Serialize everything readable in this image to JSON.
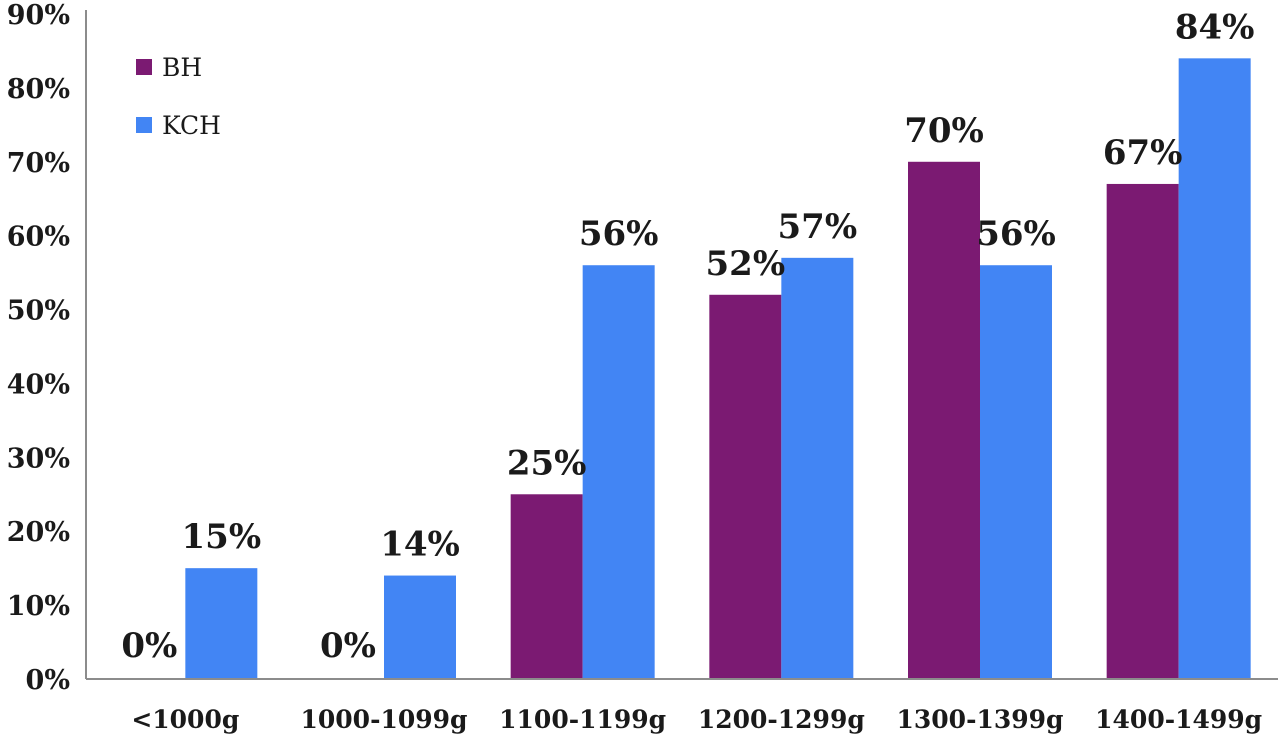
{
  "chart_data": {
    "type": "bar",
    "categories": [
      "<1000g",
      "1000-1099g",
      "1100-1199g",
      "1200-1299g",
      "1300-1399g",
      "1400-1499g"
    ],
    "series": [
      {
        "name": "BH",
        "values": [
          0,
          0,
          25,
          52,
          70,
          67
        ],
        "labels": [
          "0%",
          "0%",
          "25%",
          "52%",
          "70%",
          "67%"
        ],
        "color": "#7b1a72"
      },
      {
        "name": "KCH",
        "values": [
          15,
          14,
          56,
          57,
          56,
          84
        ],
        "labels": [
          "15%",
          "14%",
          "56%",
          "57%",
          "56%",
          "84%"
        ],
        "color": "#4285f4"
      }
    ],
    "yticks": [
      "0%",
      "10%",
      "20%",
      "30%",
      "40%",
      "50%",
      "60%",
      "70%",
      "80%",
      "90%"
    ],
    "ylim": [
      0,
      90
    ],
    "legend": "top-left",
    "grid": false,
    "title": "",
    "xlabel": "",
    "ylabel": ""
  }
}
